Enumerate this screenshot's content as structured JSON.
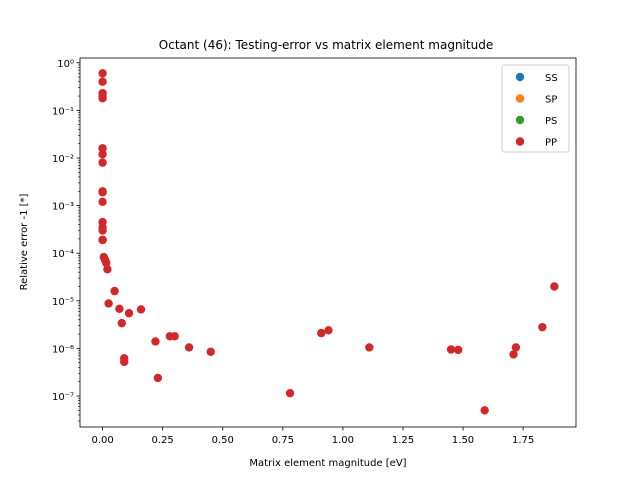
{
  "chart_data": {
    "type": "scatter",
    "title": "Octant (46): Testing-error vs matrix element magnitude",
    "xlabel": "Matrix element magnitude [eV]",
    "ylabel": "Relative error -1 [*]",
    "xlim": [
      -0.094,
      1.97
    ],
    "ylim_log10": [
      -7.65,
      0.1
    ],
    "yscale": "log",
    "grid": false,
    "legend_position": "top-right",
    "x_ticks": [
      0.0,
      0.25,
      0.5,
      0.75,
      1.0,
      1.25,
      1.5,
      1.75
    ],
    "x_tick_labels": [
      "0.00",
      "0.25",
      "0.50",
      "0.75",
      "1.00",
      "1.25",
      "1.50",
      "1.75"
    ],
    "y_ticks": [
      1e-07,
      1e-06,
      1e-05,
      0.0001,
      0.001,
      0.01,
      0.1,
      1
    ],
    "y_tick_labels": [
      "10⁻⁷",
      "10⁻⁶",
      "10⁻⁵",
      "10⁻⁴",
      "10⁻³",
      "10⁻²",
      "10⁻¹",
      "10⁰"
    ],
    "series": [
      {
        "name": "SS",
        "color": "#1f77b4",
        "x": [],
        "y": []
      },
      {
        "name": "SP",
        "color": "#ff7f0e",
        "x": [],
        "y": []
      },
      {
        "name": "PS",
        "color": "#2ca02c",
        "x": [],
        "y": []
      },
      {
        "name": "PP",
        "color": "#d62728",
        "x": [
          0.0,
          0.0,
          0.0,
          0.0,
          0.0,
          0.0,
          0.0,
          0.0,
          0.0,
          0.0,
          0.0,
          0.0,
          0.0,
          0.0,
          0.0,
          0.0,
          0.0,
          0.005,
          0.01,
          0.015,
          0.02,
          0.025,
          0.05,
          0.07,
          0.08,
          0.09,
          0.09,
          0.11,
          0.16,
          0.22,
          0.23,
          0.28,
          0.3,
          0.36,
          0.45,
          0.78,
          0.91,
          0.94,
          1.11,
          1.45,
          1.48,
          1.59,
          1.71,
          1.72,
          1.83,
          1.88
        ],
        "y": [
          0.6,
          0.4,
          0.23,
          0.2,
          0.18,
          0.016,
          0.012,
          0.008,
          0.002,
          0.0019,
          0.0012,
          0.00045,
          0.00035,
          0.0003,
          0.00019,
          0.00019,
          0.00019,
          8.3e-05,
          7.3e-05,
          6.3e-05,
          4.6e-05,
          8.8e-06,
          1.6e-05,
          6.8e-06,
          3.4e-06,
          6.2e-07,
          5.2e-07,
          5.5e-06,
          6.6e-06,
          1.4e-06,
          2.4e-07,
          1.8e-06,
          1.8e-06,
          1.05e-06,
          8.5e-07,
          1.15e-07,
          2.1e-06,
          2.4e-06,
          1.05e-06,
          9.5e-07,
          9.3e-07,
          5e-08,
          7.5e-07,
          1.05e-06,
          2.8e-06,
          2e-05
        ]
      }
    ]
  }
}
